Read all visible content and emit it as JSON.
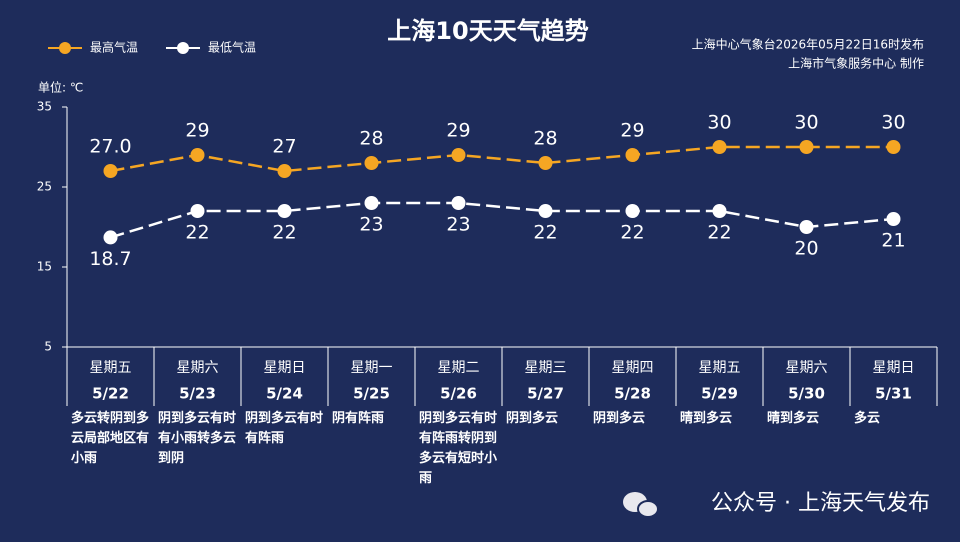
{
  "chart_data": {
    "type": "line",
    "title": "上海10天天气趋势",
    "source": "上海中心气象台2026年05月22日16时发布",
    "producer": "上海市气象服务中心 制作",
    "unit_label": "单位: ℃",
    "watermark": "公众号 · 上海天气发布",
    "categories": [
      "5/22",
      "5/23",
      "5/24",
      "5/25",
      "5/26",
      "5/27",
      "5/28",
      "5/29",
      "5/30",
      "5/31"
    ],
    "weekdays": [
      "星期五",
      "星期六",
      "星期日",
      "星期一",
      "星期二",
      "星期三",
      "星期四",
      "星期五",
      "星期六",
      "星期日"
    ],
    "weekday_colors": [
      "#ffffff",
      "#f5a623",
      "#f5a623",
      "#ffffff",
      "#ffffff",
      "#ffffff",
      "#ffffff",
      "#ffffff",
      "#f5a623",
      "#f5a623"
    ],
    "descriptions": [
      "多云转阴到多云局部地区有小雨",
      "阴到多云有时有小雨转多云到阴",
      "阴到多云有时有阵雨",
      "阴有阵雨",
      "阴到多云有时有阵雨转阴到多云有短时小雨",
      "阴到多云",
      "阴到多云",
      "晴到多云",
      "晴到多云",
      "多云"
    ],
    "series": [
      {
        "name": "最高气温",
        "color": "#f5a623",
        "values": [
          27,
          29,
          27,
          28,
          29,
          28,
          29,
          30,
          30,
          30
        ],
        "value_labels": [
          "27.0",
          "29",
          "27",
          "28",
          "29",
          "28",
          "29",
          "30",
          "30",
          "30"
        ]
      },
      {
        "name": "最低气温",
        "color": "#ffffff",
        "values": [
          18.7,
          22,
          22,
          23,
          23,
          22,
          22,
          22,
          20,
          21
        ]
      }
    ],
    "ylim": [
      5,
      35
    ],
    "yticks": [
      5,
      15,
      25,
      35
    ],
    "grid": false
  }
}
